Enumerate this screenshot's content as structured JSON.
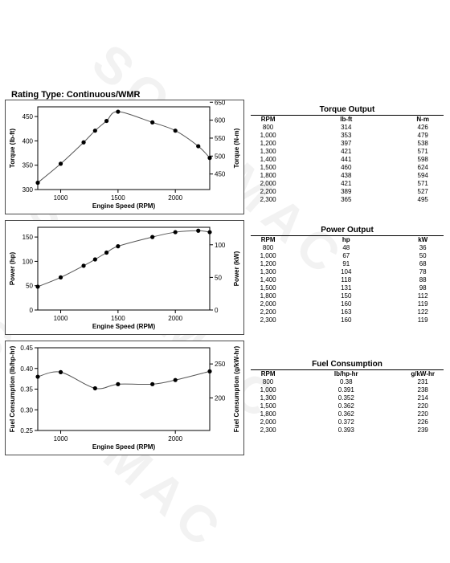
{
  "rating_type": "Rating Type: Continuous/WMR",
  "watermark": "SONEMAC",
  "charts": [
    {
      "id": "torque",
      "type": "line",
      "xlabel": "Engine Speed (RPM)",
      "ylabel_left": "Torque (lb-ft)",
      "ylabel_right": "Torque (N-m)",
      "xlim": [
        800,
        2300
      ],
      "ylim_left": [
        300,
        470
      ],
      "ylim_right": [
        406.7,
        637.2
      ],
      "xticks": [
        1000,
        1500,
        2000
      ],
      "yticks_left": [
        300,
        350,
        400,
        450
      ],
      "yticks_right": [
        450,
        500,
        550,
        600,
        650
      ],
      "x": [
        800,
        1000,
        1200,
        1300,
        1400,
        1500,
        1800,
        2000,
        2200,
        2300
      ],
      "y": [
        314,
        353,
        397,
        421,
        441,
        460,
        438,
        421,
        389,
        365
      ]
    },
    {
      "id": "power",
      "type": "line",
      "xlabel": "Engine Speed (RPM)",
      "ylabel_left": "Power (hp)",
      "ylabel_right": "Power (kW)",
      "xlim": [
        800,
        2300
      ],
      "ylim_left": [
        0,
        170
      ],
      "ylim_right": [
        0,
        126.8
      ],
      "xticks": [
        1000,
        1500,
        2000
      ],
      "yticks_left": [
        0,
        50,
        100,
        150
      ],
      "yticks_right": [
        0,
        50,
        100
      ],
      "x": [
        800,
        1000,
        1200,
        1300,
        1400,
        1500,
        1800,
        2000,
        2200,
        2300
      ],
      "y": [
        48,
        67,
        91,
        104,
        118,
        131,
        150,
        160,
        163,
        160
      ]
    },
    {
      "id": "fuel",
      "type": "line",
      "xlabel": "Engine Speed (RPM)",
      "ylabel_left": "Fuel Consumption (lb/hp-hr)",
      "ylabel_right": "Fuel Consumption (g/kW-hr)",
      "xlim": [
        800,
        2300
      ],
      "ylim_left": [
        0.25,
        0.45
      ],
      "ylim_right": [
        152.1,
        273.8
      ],
      "xticks": [
        1000,
        2000
      ],
      "yticks_left": [
        0.25,
        0.3,
        0.35,
        0.4,
        0.45
      ],
      "yticks_left_labels": [
        "0.25",
        "0.30",
        "0.35",
        "0.40",
        "0.45"
      ],
      "yticks_right": [
        200,
        250
      ],
      "x": [
        800,
        1000,
        1300,
        1500,
        1800,
        2000,
        2300
      ],
      "y": [
        0.38,
        0.391,
        0.352,
        0.362,
        0.362,
        0.372,
        0.393
      ]
    }
  ],
  "tables": [
    {
      "title": "Torque Output",
      "headers": [
        "RPM",
        "lb-ft",
        "N-m"
      ],
      "rows": [
        [
          "800",
          "314",
          "426"
        ],
        [
          "1,000",
          "353",
          "479"
        ],
        [
          "1,200",
          "397",
          "538"
        ],
        [
          "1,300",
          "421",
          "571"
        ],
        [
          "1,400",
          "441",
          "598"
        ],
        [
          "1,500",
          "460",
          "624"
        ],
        [
          "1,800",
          "438",
          "594"
        ],
        [
          "2,000",
          "421",
          "571"
        ],
        [
          "2,200",
          "389",
          "527"
        ],
        [
          "2,300",
          "365",
          "495"
        ]
      ]
    },
    {
      "title": "Power Output",
      "headers": [
        "RPM",
        "hp",
        "kW"
      ],
      "rows": [
        [
          "800",
          "48",
          "36"
        ],
        [
          "1,000",
          "67",
          "50"
        ],
        [
          "1,200",
          "91",
          "68"
        ],
        [
          "1,300",
          "104",
          "78"
        ],
        [
          "1,400",
          "118",
          "88"
        ],
        [
          "1,500",
          "131",
          "98"
        ],
        [
          "1,800",
          "150",
          "112"
        ],
        [
          "2,000",
          "160",
          "119"
        ],
        [
          "2,200",
          "163",
          "122"
        ],
        [
          "2,300",
          "160",
          "119"
        ]
      ]
    },
    {
      "title": "Fuel Consumption",
      "headers": [
        "RPM",
        "lb/hp-hr",
        "g/kW-hr"
      ],
      "rows": [
        [
          "800",
          "0.38",
          "231"
        ],
        [
          "1,000",
          "0.391",
          "238"
        ],
        [
          "1,300",
          "0.352",
          "214"
        ],
        [
          "1,500",
          "0.362",
          "220"
        ],
        [
          "1,800",
          "0.362",
          "220"
        ],
        [
          "2,000",
          "0.372",
          "226"
        ],
        [
          "2,300",
          "0.393",
          "239"
        ]
      ]
    }
  ]
}
